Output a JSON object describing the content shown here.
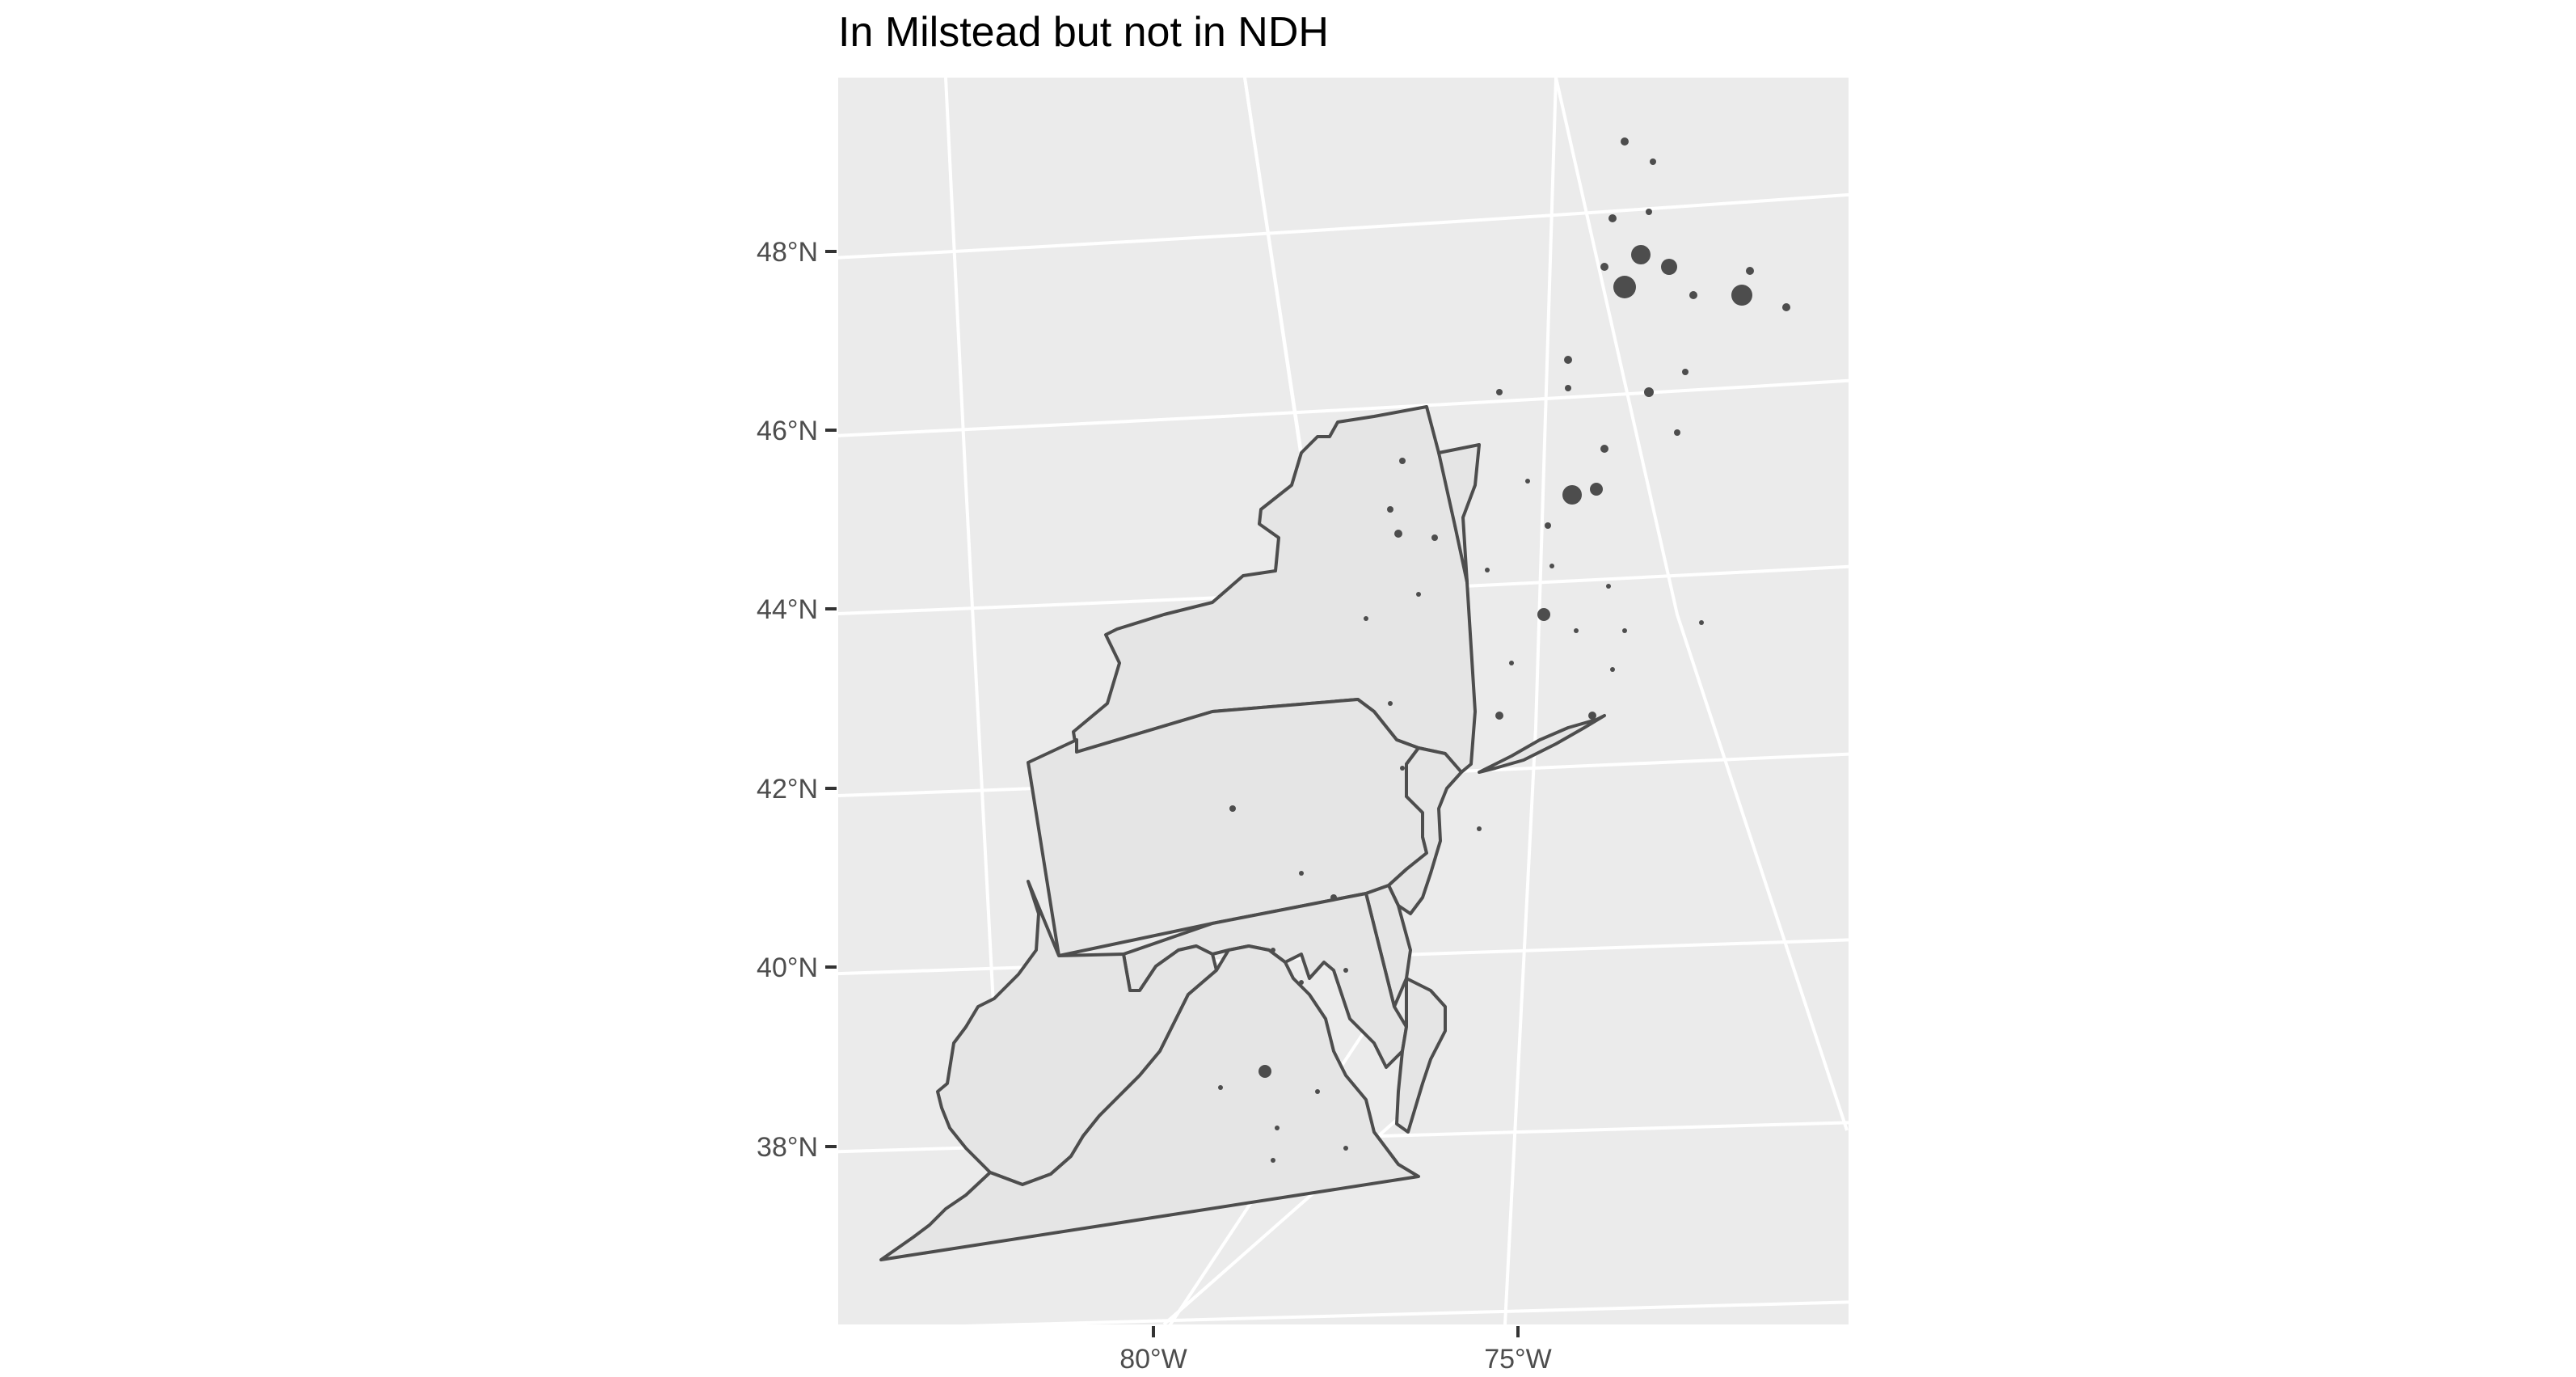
{
  "title": "In Milstead but not in NDH",
  "axes": {
    "y_ticks": [
      {
        "label": "48°N",
        "value": 48
      },
      {
        "label": "46°N",
        "value": 46
      },
      {
        "label": "44°N",
        "value": 44
      },
      {
        "label": "42°N",
        "value": 42
      },
      {
        "label": "40°N",
        "value": 40
      },
      {
        "label": "38°N",
        "value": 38
      }
    ],
    "x_ticks": [
      {
        "label": "80°W",
        "value": -80
      },
      {
        "label": "75°W",
        "value": -75
      }
    ]
  },
  "colors": {
    "panel_background": "#ebebeb",
    "gridline": "#ffffff",
    "state_fill": "#e5e5e5",
    "outline": "#4d4d4d",
    "axis_text": "#4d4d4d"
  }
}
